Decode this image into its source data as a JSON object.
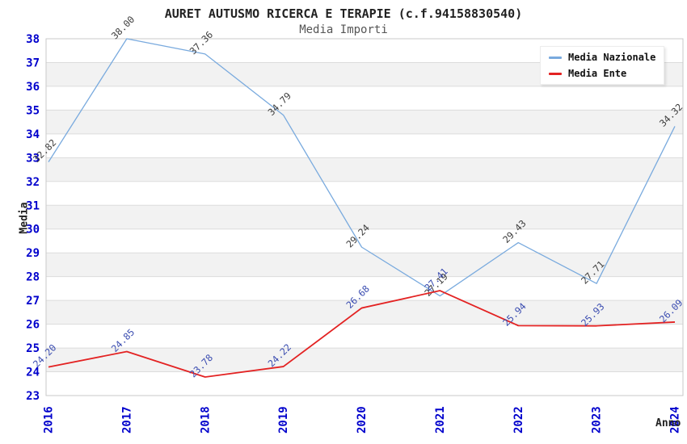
{
  "chart_data": {
    "type": "line",
    "title": "AURET AUTUSMO RICERCA E TERAPIE (c.f.94158830540)",
    "subtitle": "Media Importi",
    "xlabel": "Anno",
    "ylabel": "Media",
    "x": [
      "2016",
      "2017",
      "2018",
      "2019",
      "2020",
      "2021",
      "2022",
      "2023",
      "2024"
    ],
    "series": [
      {
        "name": "Media Nazionale",
        "color": "#79aade",
        "label_color": "#3d3d3d",
        "line_width": 1.3,
        "values": [
          32.82,
          38.0,
          37.36,
          34.79,
          29.24,
          27.19,
          29.43,
          27.71,
          34.32
        ]
      },
      {
        "name": "Media Ente",
        "color": "#e32222",
        "label_color": "#3a4cb0",
        "line_width": 1.8,
        "values": [
          24.2,
          24.85,
          23.78,
          24.22,
          26.68,
          27.41,
          25.94,
          25.93,
          26.09
        ]
      }
    ],
    "ylim": [
      23,
      38
    ],
    "ytick_step": 1,
    "grid": true,
    "legend_position": "top-right",
    "band_colors": [
      "#ffffff",
      "#f2f2f2"
    ],
    "grid_color": "#dcdcdc",
    "border_color": "#c9c9c9",
    "tick_color": "#0000cc"
  }
}
